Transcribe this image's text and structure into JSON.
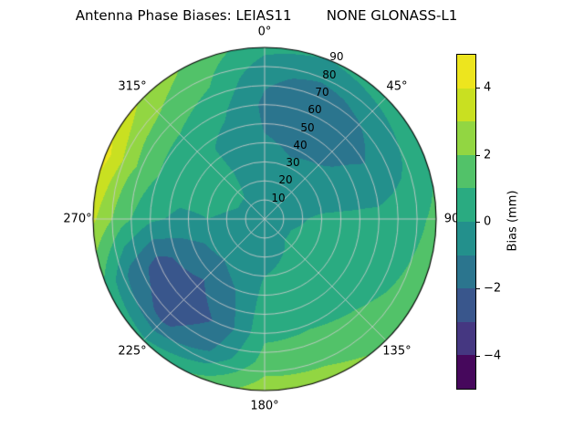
{
  "chart_data": {
    "type": "heatmap",
    "projection": "polar",
    "title": "Antenna Phase Biases: LEIAS11        NONE GLONASS-L1",
    "colormap": "viridis",
    "value_range": [
      -5,
      5
    ],
    "levels": [
      -5,
      -4,
      -3,
      -2,
      -1,
      0,
      1,
      2,
      3,
      4,
      5
    ],
    "band_colors": [
      "#46085c",
      "#453781",
      "#39568c",
      "#2b758e",
      "#23908c",
      "#2aab81",
      "#52c269",
      "#92d642",
      "#c9e021",
      "#ede51e"
    ],
    "angular_ticks": [
      "0°",
      "45°",
      "90",
      "135°",
      "180°",
      "225°",
      "270°",
      "315°"
    ],
    "radial_ticks": [
      10,
      20,
      30,
      40,
      50,
      60,
      70,
      80,
      90
    ],
    "radial_label_angle_deg": 22.5,
    "colorbar": {
      "label": "Bias (mm)",
      "ticks": [
        {
          "value": 4,
          "label": "4"
        },
        {
          "value": 2,
          "label": "2"
        },
        {
          "value": 0,
          "label": "0"
        },
        {
          "value": -2,
          "label": "−2"
        },
        {
          "value": -4,
          "label": "−4"
        }
      ]
    },
    "azimuth_deg": [
      0,
      22.5,
      45,
      67.5,
      90,
      112.5,
      135,
      157.5,
      180,
      202.5,
      225,
      247.5,
      270,
      292.5,
      315,
      337.5,
      360
    ],
    "zenith_deg": [
      0,
      15,
      30,
      45,
      60,
      75,
      90
    ],
    "values_mm": [
      [
        -0.2,
        -0.3,
        -0.5,
        -1.0,
        -1.2,
        -0.8,
        0.3
      ],
      [
        -0.2,
        -0.4,
        -0.8,
        -1.4,
        -1.8,
        -1.2,
        0.0
      ],
      [
        -0.2,
        -0.3,
        -0.6,
        -1.2,
        -1.5,
        -0.8,
        0.5
      ],
      [
        -0.2,
        -0.2,
        -0.3,
        -0.6,
        -0.8,
        -0.2,
        0.8
      ],
      [
        -0.2,
        -0.1,
        0.1,
        0.2,
        0.3,
        0.6,
        1.2
      ],
      [
        -0.2,
        0.0,
        0.2,
        0.4,
        0.6,
        0.9,
        1.5
      ],
      [
        -0.2,
        0.0,
        0.2,
        0.5,
        0.8,
        1.2,
        1.8
      ],
      [
        -0.2,
        -0.1,
        0.1,
        0.5,
        0.9,
        1.5,
        2.4
      ],
      [
        -0.2,
        -0.2,
        0.0,
        0.4,
        0.8,
        1.4,
        2.6
      ],
      [
        -0.2,
        -0.3,
        -0.6,
        -1.2,
        -1.8,
        -1.0,
        1.2
      ],
      [
        -0.2,
        -0.4,
        -1.0,
        -2.0,
        -2.8,
        -2.2,
        0.2
      ],
      [
        -0.2,
        -0.3,
        -0.8,
        -1.6,
        -2.4,
        -1.4,
        0.8
      ],
      [
        -0.2,
        -0.1,
        0.0,
        -0.2,
        0.2,
        1.4,
        3.2
      ],
      [
        -0.2,
        0.0,
        0.2,
        0.4,
        1.0,
        2.2,
        4.4
      ],
      [
        -0.2,
        0.0,
        0.2,
        0.3,
        0.8,
        1.8,
        2.8
      ],
      [
        -0.2,
        -0.1,
        -0.2,
        -0.4,
        0.2,
        1.0,
        1.6
      ],
      [
        -0.2,
        -0.3,
        -0.5,
        -1.0,
        -1.2,
        -0.8,
        0.3
      ]
    ]
  }
}
